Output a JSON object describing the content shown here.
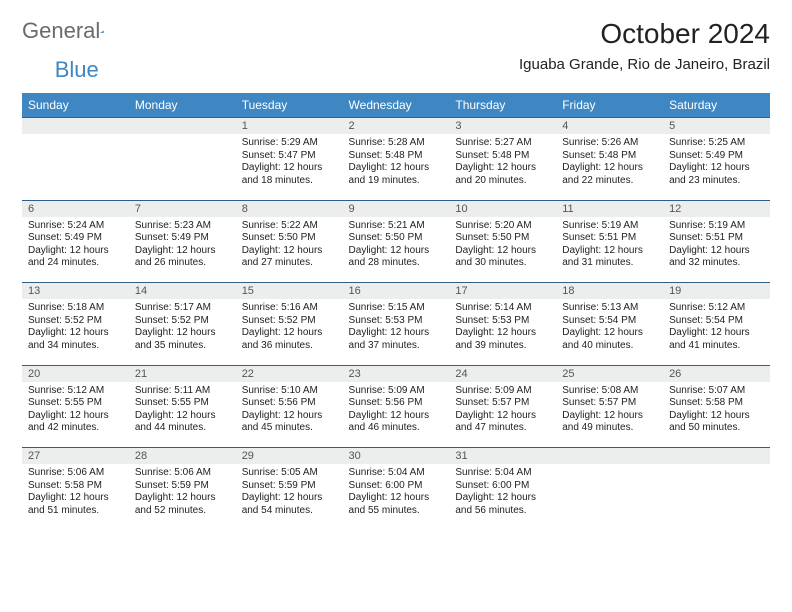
{
  "logo": {
    "general": "General",
    "blue": "Blue"
  },
  "title": "October 2024",
  "location": "Iguaba Grande, Rio de Janeiro, Brazil",
  "colors": {
    "header_bg": "#3e87c3",
    "header_text": "#ffffff",
    "daynum_bg": "#eceded",
    "rule": "#2f5e89",
    "text": "#222222",
    "logo_gray": "#6b6b6b",
    "logo_blue": "#3e87c3"
  },
  "day_headers": [
    "Sunday",
    "Monday",
    "Tuesday",
    "Wednesday",
    "Thursday",
    "Friday",
    "Saturday"
  ],
  "weeks": [
    [
      null,
      null,
      {
        "n": "1",
        "sunrise": "5:29 AM",
        "sunset": "5:47 PM",
        "daylight": "12 hours and 18 minutes."
      },
      {
        "n": "2",
        "sunrise": "5:28 AM",
        "sunset": "5:48 PM",
        "daylight": "12 hours and 19 minutes."
      },
      {
        "n": "3",
        "sunrise": "5:27 AM",
        "sunset": "5:48 PM",
        "daylight": "12 hours and 20 minutes."
      },
      {
        "n": "4",
        "sunrise": "5:26 AM",
        "sunset": "5:48 PM",
        "daylight": "12 hours and 22 minutes."
      },
      {
        "n": "5",
        "sunrise": "5:25 AM",
        "sunset": "5:49 PM",
        "daylight": "12 hours and 23 minutes."
      }
    ],
    [
      {
        "n": "6",
        "sunrise": "5:24 AM",
        "sunset": "5:49 PM",
        "daylight": "12 hours and 24 minutes."
      },
      {
        "n": "7",
        "sunrise": "5:23 AM",
        "sunset": "5:49 PM",
        "daylight": "12 hours and 26 minutes."
      },
      {
        "n": "8",
        "sunrise": "5:22 AM",
        "sunset": "5:50 PM",
        "daylight": "12 hours and 27 minutes."
      },
      {
        "n": "9",
        "sunrise": "5:21 AM",
        "sunset": "5:50 PM",
        "daylight": "12 hours and 28 minutes."
      },
      {
        "n": "10",
        "sunrise": "5:20 AM",
        "sunset": "5:50 PM",
        "daylight": "12 hours and 30 minutes."
      },
      {
        "n": "11",
        "sunrise": "5:19 AM",
        "sunset": "5:51 PM",
        "daylight": "12 hours and 31 minutes."
      },
      {
        "n": "12",
        "sunrise": "5:19 AM",
        "sunset": "5:51 PM",
        "daylight": "12 hours and 32 minutes."
      }
    ],
    [
      {
        "n": "13",
        "sunrise": "5:18 AM",
        "sunset": "5:52 PM",
        "daylight": "12 hours and 34 minutes."
      },
      {
        "n": "14",
        "sunrise": "5:17 AM",
        "sunset": "5:52 PM",
        "daylight": "12 hours and 35 minutes."
      },
      {
        "n": "15",
        "sunrise": "5:16 AM",
        "sunset": "5:52 PM",
        "daylight": "12 hours and 36 minutes."
      },
      {
        "n": "16",
        "sunrise": "5:15 AM",
        "sunset": "5:53 PM",
        "daylight": "12 hours and 37 minutes."
      },
      {
        "n": "17",
        "sunrise": "5:14 AM",
        "sunset": "5:53 PM",
        "daylight": "12 hours and 39 minutes."
      },
      {
        "n": "18",
        "sunrise": "5:13 AM",
        "sunset": "5:54 PM",
        "daylight": "12 hours and 40 minutes."
      },
      {
        "n": "19",
        "sunrise": "5:12 AM",
        "sunset": "5:54 PM",
        "daylight": "12 hours and 41 minutes."
      }
    ],
    [
      {
        "n": "20",
        "sunrise": "5:12 AM",
        "sunset": "5:55 PM",
        "daylight": "12 hours and 42 minutes."
      },
      {
        "n": "21",
        "sunrise": "5:11 AM",
        "sunset": "5:55 PM",
        "daylight": "12 hours and 44 minutes."
      },
      {
        "n": "22",
        "sunrise": "5:10 AM",
        "sunset": "5:56 PM",
        "daylight": "12 hours and 45 minutes."
      },
      {
        "n": "23",
        "sunrise": "5:09 AM",
        "sunset": "5:56 PM",
        "daylight": "12 hours and 46 minutes."
      },
      {
        "n": "24",
        "sunrise": "5:09 AM",
        "sunset": "5:57 PM",
        "daylight": "12 hours and 47 minutes."
      },
      {
        "n": "25",
        "sunrise": "5:08 AM",
        "sunset": "5:57 PM",
        "daylight": "12 hours and 49 minutes."
      },
      {
        "n": "26",
        "sunrise": "5:07 AM",
        "sunset": "5:58 PM",
        "daylight": "12 hours and 50 minutes."
      }
    ],
    [
      {
        "n": "27",
        "sunrise": "5:06 AM",
        "sunset": "5:58 PM",
        "daylight": "12 hours and 51 minutes."
      },
      {
        "n": "28",
        "sunrise": "5:06 AM",
        "sunset": "5:59 PM",
        "daylight": "12 hours and 52 minutes."
      },
      {
        "n": "29",
        "sunrise": "5:05 AM",
        "sunset": "5:59 PM",
        "daylight": "12 hours and 54 minutes."
      },
      {
        "n": "30",
        "sunrise": "5:04 AM",
        "sunset": "6:00 PM",
        "daylight": "12 hours and 55 minutes."
      },
      {
        "n": "31",
        "sunrise": "5:04 AM",
        "sunset": "6:00 PM",
        "daylight": "12 hours and 56 minutes."
      },
      null,
      null
    ]
  ],
  "labels": {
    "sunrise": "Sunrise: ",
    "sunset": "Sunset: ",
    "daylight": "Daylight: "
  }
}
